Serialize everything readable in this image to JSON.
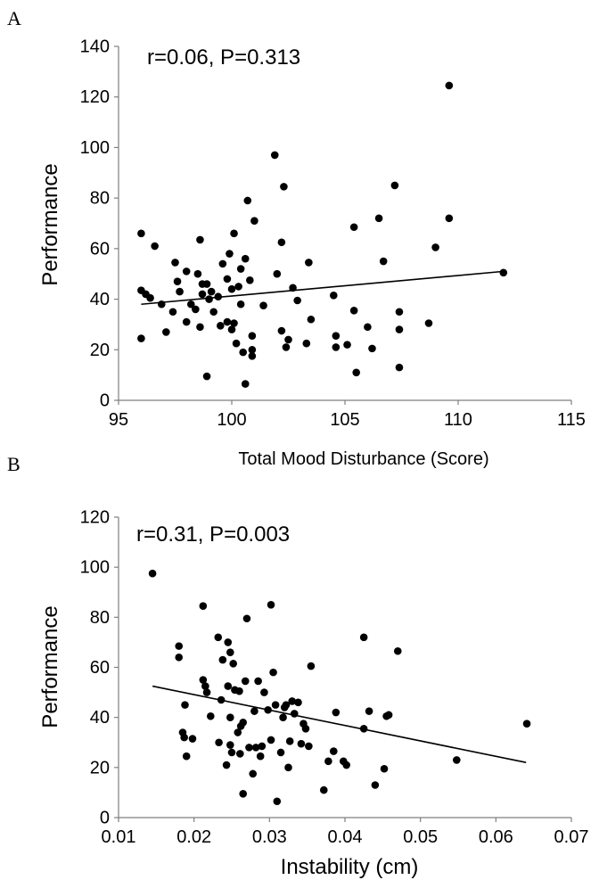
{
  "chart_data": [
    {
      "type": "scatter",
      "panel_label": "A",
      "annotation": "r=0.06, P=0.313",
      "xlabel": "Total Mood Disturbance (Score)",
      "ylabel": "Performance",
      "xlim": [
        95,
        115
      ],
      "ylim": [
        0,
        140
      ],
      "xticks": [
        "95",
        "100",
        "105",
        "110",
        "115"
      ],
      "yticks": [
        "0",
        "20",
        "40",
        "60",
        "80",
        "100",
        "120",
        "140"
      ],
      "grid": false,
      "trendline": [
        [
          96,
          38
        ],
        [
          112,
          51
        ]
      ],
      "points": [
        [
          96.0,
          66
        ],
        [
          96.0,
          43.5
        ],
        [
          96.2,
          42
        ],
        [
          96.4,
          40.5
        ],
        [
          96.6,
          61
        ],
        [
          96.0,
          24.5
        ],
        [
          96.9,
          38
        ],
        [
          97.1,
          27
        ],
        [
          97.4,
          35
        ],
        [
          97.5,
          54.5
        ],
        [
          97.6,
          47
        ],
        [
          97.7,
          43
        ],
        [
          98.0,
          51
        ],
        [
          98.0,
          31
        ],
        [
          98.2,
          38
        ],
        [
          98.4,
          36
        ],
        [
          98.5,
          50
        ],
        [
          98.6,
          29
        ],
        [
          98.6,
          63.5
        ],
        [
          98.7,
          46
        ],
        [
          98.7,
          42
        ],
        [
          98.9,
          9.5
        ],
        [
          98.9,
          46
        ],
        [
          99.0,
          40
        ],
        [
          99.1,
          43
        ],
        [
          99.2,
          35
        ],
        [
          99.4,
          41
        ],
        [
          99.5,
          29.5
        ],
        [
          99.6,
          54
        ],
        [
          99.8,
          48
        ],
        [
          99.8,
          31
        ],
        [
          99.9,
          58
        ],
        [
          100.0,
          44
        ],
        [
          100.0,
          28
        ],
        [
          100.1,
          66
        ],
        [
          100.1,
          30.5
        ],
        [
          100.2,
          22.5
        ],
        [
          100.3,
          45
        ],
        [
          100.4,
          52
        ],
        [
          100.4,
          38
        ],
        [
          100.5,
          19
        ],
        [
          100.6,
          56
        ],
        [
          100.6,
          6.5
        ],
        [
          100.7,
          79
        ],
        [
          100.8,
          47.5
        ],
        [
          100.9,
          20
        ],
        [
          100.9,
          25.5
        ],
        [
          100.9,
          17.5
        ],
        [
          101.0,
          71
        ],
        [
          101.4,
          37.5
        ],
        [
          101.9,
          97
        ],
        [
          102.0,
          50
        ],
        [
          102.2,
          62.5
        ],
        [
          102.2,
          27.5
        ],
        [
          102.3,
          84.5
        ],
        [
          102.4,
          21
        ],
        [
          102.5,
          24
        ],
        [
          102.7,
          44.5
        ],
        [
          102.9,
          39.5
        ],
        [
          103.3,
          22.5
        ],
        [
          103.4,
          54.5
        ],
        [
          103.5,
          32
        ],
        [
          104.5,
          41.5
        ],
        [
          104.6,
          21
        ],
        [
          104.6,
          25.5
        ],
        [
          105.1,
          22
        ],
        [
          105.4,
          35.5
        ],
        [
          105.4,
          68.5
        ],
        [
          105.5,
          11
        ],
        [
          106.0,
          29
        ],
        [
          106.2,
          20.5
        ],
        [
          106.5,
          72
        ],
        [
          106.7,
          55
        ],
        [
          107.2,
          85
        ],
        [
          107.4,
          35
        ],
        [
          107.4,
          28
        ],
        [
          107.4,
          13
        ],
        [
          108.7,
          30.5
        ],
        [
          109.0,
          60.5
        ],
        [
          109.6,
          72
        ],
        [
          109.6,
          124.5
        ],
        [
          112.0,
          50.5
        ]
      ]
    },
    {
      "type": "scatter",
      "panel_label": "B",
      "annotation": "r=0.31, P=0.003",
      "xlabel": "Instability (cm)",
      "ylabel": "Performance",
      "xlim": [
        0.01,
        0.07
      ],
      "ylim": [
        0,
        120
      ],
      "xticks": [
        "0.01",
        "0.02",
        "0.03",
        "0.04",
        "0.05",
        "0.06",
        "0.07"
      ],
      "yticks": [
        "0",
        "20",
        "40",
        "60",
        "80",
        "100",
        "120"
      ],
      "grid": false,
      "trendline": [
        [
          0.0145,
          52.5
        ],
        [
          0.064,
          22
        ]
      ],
      "points": [
        [
          0.0145,
          97.5
        ],
        [
          0.018,
          68.5
        ],
        [
          0.018,
          64
        ],
        [
          0.0185,
          34
        ],
        [
          0.0187,
          32
        ],
        [
          0.0188,
          45
        ],
        [
          0.019,
          24.5
        ],
        [
          0.0198,
          31.5
        ],
        [
          0.0212,
          84.5
        ],
        [
          0.0212,
          55
        ],
        [
          0.0215,
          52.5
        ],
        [
          0.0217,
          50
        ],
        [
          0.0222,
          40.5
        ],
        [
          0.0232,
          72
        ],
        [
          0.0233,
          30
        ],
        [
          0.0236,
          47
        ],
        [
          0.0238,
          63
        ],
        [
          0.0243,
          21
        ],
        [
          0.0245,
          70
        ],
        [
          0.0245,
          52.5
        ],
        [
          0.0248,
          66
        ],
        [
          0.0248,
          40
        ],
        [
          0.0248,
          29
        ],
        [
          0.025,
          26
        ],
        [
          0.0252,
          61.5
        ],
        [
          0.0254,
          51
        ],
        [
          0.0258,
          34
        ],
        [
          0.026,
          50.5
        ],
        [
          0.0261,
          25.5
        ],
        [
          0.0262,
          36.5
        ],
        [
          0.0265,
          38
        ],
        [
          0.0265,
          9.5
        ],
        [
          0.0268,
          54.5
        ],
        [
          0.027,
          79.5
        ],
        [
          0.0273,
          28
        ],
        [
          0.0278,
          17.5
        ],
        [
          0.028,
          42.5
        ],
        [
          0.0282,
          28
        ],
        [
          0.0285,
          54.5
        ],
        [
          0.0288,
          24.5
        ],
        [
          0.029,
          28.5
        ],
        [
          0.0293,
          50
        ],
        [
          0.0298,
          43
        ],
        [
          0.0302,
          85
        ],
        [
          0.0302,
          31
        ],
        [
          0.0305,
          58
        ],
        [
          0.0308,
          45
        ],
        [
          0.031,
          6.5
        ],
        [
          0.0315,
          26
        ],
        [
          0.0318,
          40
        ],
        [
          0.032,
          44
        ],
        [
          0.0322,
          45
        ],
        [
          0.0325,
          20
        ],
        [
          0.0327,
          30.5
        ],
        [
          0.033,
          46.5
        ],
        [
          0.0333,
          41.5
        ],
        [
          0.0338,
          46
        ],
        [
          0.0342,
          29.5
        ],
        [
          0.0345,
          37.5
        ],
        [
          0.0348,
          35.5
        ],
        [
          0.0352,
          28.5
        ],
        [
          0.0355,
          60.5
        ],
        [
          0.0372,
          11
        ],
        [
          0.0378,
          22.5
        ],
        [
          0.0385,
          26.5
        ],
        [
          0.0388,
          42
        ],
        [
          0.0398,
          22.5
        ],
        [
          0.0402,
          21
        ],
        [
          0.0425,
          72
        ],
        [
          0.0425,
          35.5
        ],
        [
          0.0432,
          42.5
        ],
        [
          0.044,
          13
        ],
        [
          0.0452,
          19.5
        ],
        [
          0.0455,
          40.5
        ],
        [
          0.0458,
          41
        ],
        [
          0.047,
          66.5
        ],
        [
          0.0548,
          23
        ],
        [
          0.0641,
          37.5
        ]
      ]
    }
  ]
}
